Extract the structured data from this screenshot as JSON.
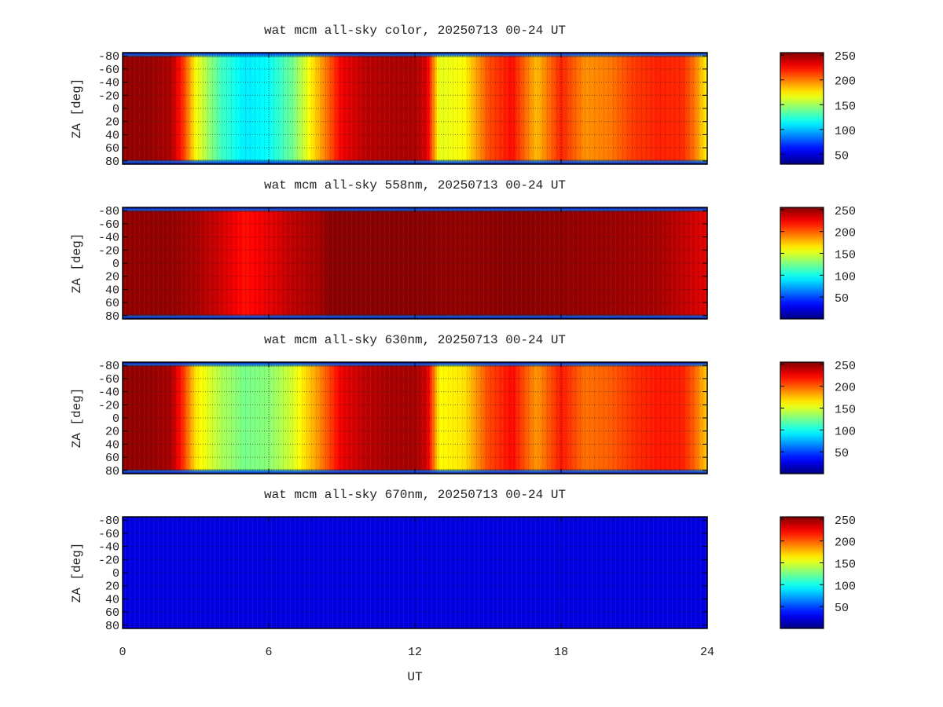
{
  "chart_data": [
    {
      "type": "heatmap",
      "title": "wat mcm all-sky color, 20250713 00-24 UT",
      "xlabel": "",
      "ylabel": "ZA [deg]",
      "xlim": [
        0,
        24
      ],
      "ylim": [
        -85,
        85
      ],
      "xticks": [
        0,
        6,
        12,
        18,
        24
      ],
      "yticks": [
        -80,
        -60,
        -40,
        -20,
        0,
        20,
        40,
        60,
        80
      ],
      "ytick_labels": [
        "-80",
        "-60",
        "-40",
        "-20",
        "0",
        "20",
        "40",
        "60",
        "80"
      ],
      "grid": true,
      "colormap": "jet",
      "colorbar": {
        "min": 30,
        "max": 255,
        "ticks": [
          50,
          100,
          150,
          200,
          250
        ]
      },
      "profile": {
        "ut": [
          0,
          1,
          2,
          2.5,
          3,
          4,
          5,
          6,
          7,
          8,
          9,
          10,
          11,
          12,
          12.5,
          13,
          14,
          15,
          16,
          17,
          18,
          19,
          20,
          21,
          22,
          23,
          23.5,
          24
        ],
        "value": [
          250,
          250,
          245,
          215,
          170,
          130,
          110,
          115,
          140,
          185,
          230,
          242,
          245,
          245,
          235,
          165,
          170,
          210,
          225,
          185,
          220,
          195,
          200,
          215,
          220,
          218,
          200,
          170
        ]
      }
    },
    {
      "type": "heatmap",
      "title": "wat mcm all-sky 558nm, 20250713 00-24 UT",
      "xlabel": "",
      "ylabel": "ZA [deg]",
      "xlim": [
        0,
        24
      ],
      "ylim": [
        -85,
        85
      ],
      "xticks": [
        0,
        6,
        12,
        18,
        24
      ],
      "yticks": [
        -80,
        -60,
        -40,
        -20,
        0,
        20,
        40,
        60,
        80
      ],
      "ytick_labels": [
        "-80",
        "-60",
        "-40",
        "-20",
        "0",
        "20",
        "40",
        "60",
        "80"
      ],
      "grid": true,
      "colormap": "jet",
      "colorbar": {
        "min": 0,
        "max": 255,
        "ticks": [
          50,
          100,
          150,
          200,
          250
        ]
      },
      "profile": {
        "ut": [
          0,
          2,
          3,
          4,
          5,
          6,
          7,
          8,
          8.5,
          10,
          12,
          14,
          16,
          18,
          20,
          22,
          23,
          24
        ],
        "value": [
          250,
          250,
          245,
          235,
          220,
          228,
          240,
          245,
          252,
          252,
          252,
          250,
          252,
          250,
          248,
          245,
          238,
          230
        ]
      }
    },
    {
      "type": "heatmap",
      "title": "wat mcm all-sky 630nm, 20250713 00-24 UT",
      "xlabel": "",
      "ylabel": "ZA [deg]",
      "xlim": [
        0,
        24
      ],
      "ylim": [
        -85,
        85
      ],
      "xticks": [
        0,
        6,
        12,
        18,
        24
      ],
      "yticks": [
        -80,
        -60,
        -40,
        -20,
        0,
        20,
        40,
        60,
        80
      ],
      "ytick_labels": [
        "-80",
        "-60",
        "-40",
        "-20",
        "0",
        "20",
        "40",
        "60",
        "80"
      ],
      "grid": true,
      "colormap": "jet",
      "colorbar": {
        "min": 0,
        "max": 255,
        "ticks": [
          50,
          100,
          150,
          200,
          250
        ]
      },
      "profile": {
        "ut": [
          0,
          1,
          2,
          2.5,
          3,
          4,
          5,
          6,
          7,
          8,
          9,
          10,
          11,
          12,
          12.5,
          13,
          14,
          15,
          16,
          17,
          18,
          19,
          20,
          21,
          22,
          23,
          23.5,
          24
        ],
        "value": [
          250,
          250,
          245,
          210,
          165,
          140,
          125,
          130,
          150,
          185,
          228,
          240,
          245,
          245,
          235,
          160,
          165,
          205,
          222,
          185,
          218,
          195,
          200,
          212,
          218,
          216,
          198,
          170
        ]
      }
    },
    {
      "type": "heatmap",
      "title": "wat mcm all-sky 670nm, 20250713 00-24 UT",
      "xlabel": "UT",
      "ylabel": "ZA [deg]",
      "xlim": [
        0,
        24
      ],
      "ylim": [
        -85,
        85
      ],
      "xticks": [
        0,
        6,
        12,
        18,
        24
      ],
      "yticks": [
        -80,
        -60,
        -40,
        -20,
        0,
        20,
        40,
        60,
        80
      ],
      "ytick_labels": [
        "-80",
        "-60",
        "-40",
        "-20",
        "0",
        "20",
        "40",
        "60",
        "80"
      ],
      "grid": true,
      "colormap": "jet",
      "colorbar": {
        "min": 0,
        "max": 255,
        "ticks": [
          50,
          100,
          150,
          200,
          250
        ]
      },
      "profile": {
        "ut": [
          0,
          24
        ],
        "value": [
          25,
          25
        ]
      }
    }
  ]
}
